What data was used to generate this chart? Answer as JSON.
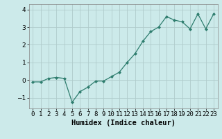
{
  "x": [
    0,
    1,
    2,
    3,
    4,
    5,
    6,
    7,
    8,
    9,
    10,
    11,
    12,
    13,
    14,
    15,
    16,
    17,
    18,
    19,
    20,
    21,
    22,
    23
  ],
  "y": [
    -0.1,
    -0.1,
    0.1,
    0.15,
    0.1,
    -1.25,
    -0.65,
    -0.4,
    -0.05,
    -0.05,
    0.2,
    0.45,
    1.0,
    1.5,
    2.2,
    2.75,
    3.0,
    3.6,
    3.4,
    3.3,
    2.9,
    3.75,
    2.9,
    3.75
  ],
  "line_color": "#2e7d6e",
  "marker": "D",
  "marker_size": 2.0,
  "bg_color": "#cceaea",
  "grid_color": "#b0cccc",
  "xlabel": "Humidex (Indice chaleur)",
  "xlabel_fontsize": 7.5,
  "tick_fontsize": 6.5,
  "ylim": [
    -1.6,
    4.3
  ],
  "yticks": [
    -1,
    0,
    1,
    2,
    3,
    4
  ],
  "xlim": [
    -0.5,
    23.5
  ]
}
